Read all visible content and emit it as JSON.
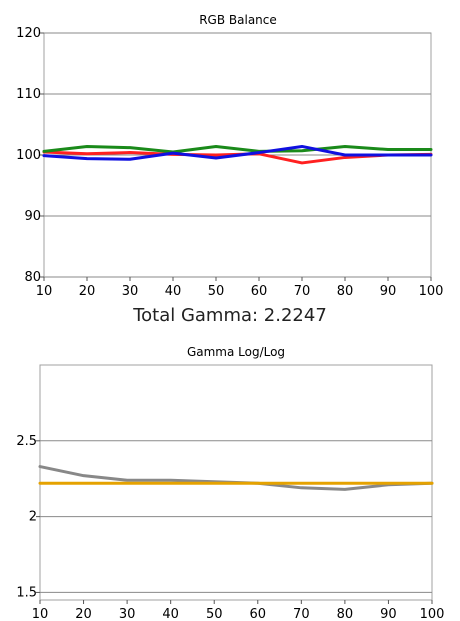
{
  "summary": {
    "total_gamma_label": "Total Gamma: 2.2247"
  },
  "chart_data": [
    {
      "type": "line",
      "title": "RGB Balance",
      "xlabel": "",
      "ylabel": "",
      "x": [
        10,
        20,
        30,
        40,
        50,
        60,
        70,
        80,
        90,
        100
      ],
      "xlim": [
        10,
        100
      ],
      "ylim": [
        80,
        120
      ],
      "xticks": [
        "10",
        "20",
        "30",
        "40",
        "50",
        "60",
        "70",
        "80",
        "90",
        "100"
      ],
      "yticks": [
        80,
        90,
        100,
        110,
        120
      ],
      "ytick_labels": [
        "80",
        "90",
        "100",
        "110",
        "120"
      ],
      "grid": "horizontal",
      "series": [
        {
          "color": "#ff2020",
          "values": [
            100.5,
            100.2,
            100.4,
            100.1,
            100.0,
            100.2,
            98.7,
            99.6,
            100.0,
            100.1
          ]
        },
        {
          "color": "#1a8a1a",
          "values": [
            100.6,
            101.4,
            101.2,
            100.5,
            101.4,
            100.6,
            100.7,
            101.4,
            100.9,
            100.9
          ]
        },
        {
          "color": "#1010e0",
          "values": [
            99.9,
            99.4,
            99.3,
            100.3,
            99.5,
            100.4,
            101.4,
            100.0,
            100.0,
            100.0
          ]
        }
      ]
    },
    {
      "type": "line",
      "title": "Gamma Log/Log",
      "xlabel": "",
      "ylabel": "",
      "x": [
        10,
        20,
        30,
        40,
        50,
        60,
        70,
        80,
        90,
        100
      ],
      "xlim": [
        10,
        100
      ],
      "ylim": [
        1.45,
        3.0
      ],
      "xticks": [
        "10",
        "20",
        "30",
        "40",
        "50",
        "60",
        "70",
        "80",
        "90",
        "100"
      ],
      "yticks": [
        1.5,
        2,
        2.5
      ],
      "ytick_labels": [
        "1.5",
        "2",
        "2.5"
      ],
      "grid": "horizontal",
      "series": [
        {
          "color": "#888888",
          "values": [
            2.33,
            2.27,
            2.24,
            2.24,
            2.23,
            2.22,
            2.19,
            2.18,
            2.21,
            2.22
          ]
        },
        {
          "color": "#e5a200",
          "values": [
            2.22,
            2.22,
            2.22,
            2.22,
            2.22,
            2.22,
            2.22,
            2.22,
            2.22,
            2.22
          ]
        }
      ]
    }
  ]
}
